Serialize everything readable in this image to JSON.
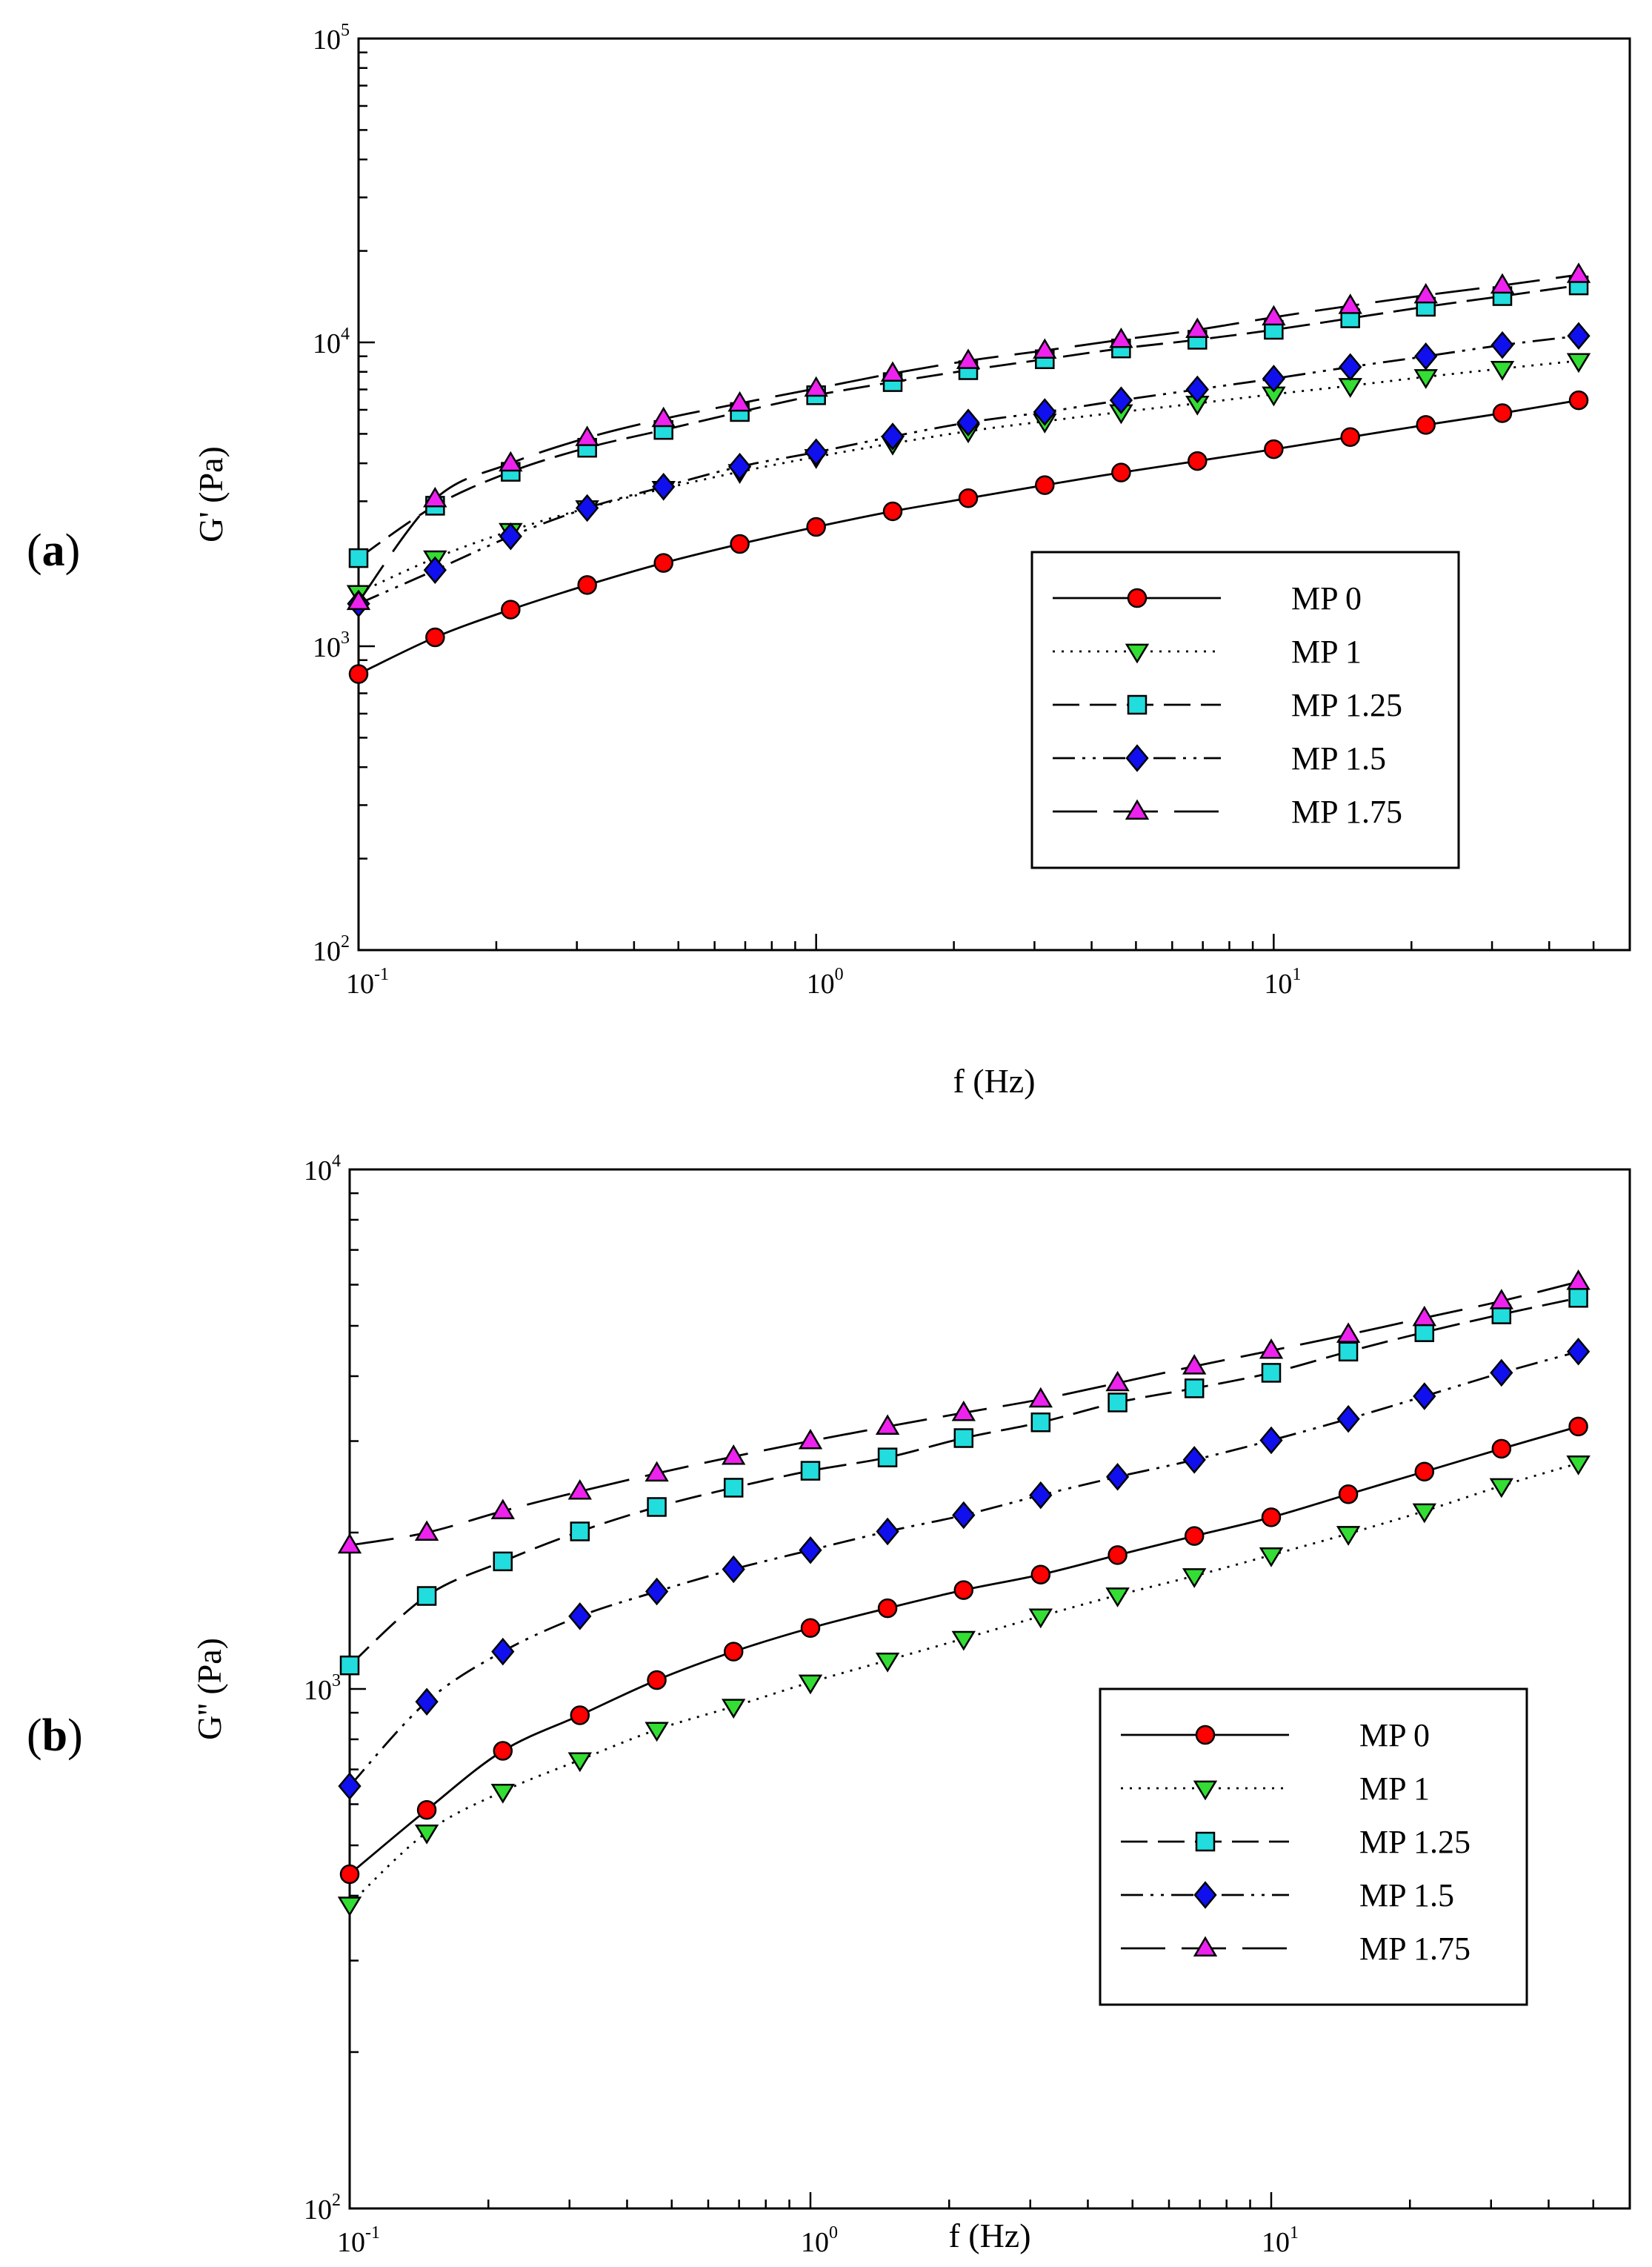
{
  "figure": {
    "panels": [
      {
        "label_open": "(",
        "label_letter": "a",
        "label_close": ")"
      },
      {
        "label_open": "(",
        "label_letter": "b",
        "label_close": ")"
      }
    ]
  },
  "series_styles": [
    {
      "name": "MP 0",
      "color": "#ff0000",
      "marker": "circle",
      "dash": "none"
    },
    {
      "name": "MP 1",
      "color": "#33dd33",
      "marker": "triangle-down",
      "dash": "dotted"
    },
    {
      "name": "MP 1.25",
      "color": "#22dddd",
      "marker": "square",
      "dash": "dashed"
    },
    {
      "name": "MP 1.5",
      "color": "#1010ee",
      "marker": "diamond",
      "dash": "dash-dot-dot"
    },
    {
      "name": "MP 1.75",
      "color": "#ee22ee",
      "marker": "triangle-up",
      "dash": "long-dash"
    }
  ],
  "chart_data": [
    {
      "type": "line",
      "panel": "a",
      "xscale": "log",
      "yscale": "log",
      "xlabel": "f (Hz)",
      "ylabel": "G' (Pa)",
      "xlim": [
        0.1,
        60
      ],
      "ylim": [
        100,
        100000
      ],
      "x_ticks": [
        {
          "base": "10",
          "exp": "-1"
        },
        {
          "base": "10",
          "exp": "0"
        },
        {
          "base": "10",
          "exp": "1"
        }
      ],
      "y_ticks": [
        {
          "base": "10",
          "exp": "2"
        },
        {
          "base": "10",
          "exp": "3"
        },
        {
          "base": "10",
          "exp": "4"
        },
        {
          "base": "10",
          "exp": "5"
        }
      ],
      "x": [
        0.1,
        0.147,
        0.215,
        0.316,
        0.464,
        0.681,
        1.0,
        1.47,
        2.15,
        3.16,
        4.64,
        6.81,
        10.0,
        14.7,
        21.5,
        31.6,
        46.4
      ],
      "series": [
        {
          "name": "MP 0",
          "values": [
            810,
            1070,
            1320,
            1590,
            1880,
            2170,
            2470,
            2780,
            3070,
            3390,
            3730,
            4070,
            4450,
            4880,
            5350,
            5850,
            6450
          ]
        },
        {
          "name": "MP 1",
          "values": [
            1500,
            1950,
            2400,
            2850,
            3300,
            3750,
            4200,
            4650,
            5100,
            5500,
            5900,
            6300,
            6750,
            7200,
            7700,
            8200,
            8700
          ]
        },
        {
          "name": "MP 1.25",
          "values": [
            1950,
            2900,
            3750,
            4500,
            5150,
            5900,
            6700,
            7400,
            8100,
            8800,
            9550,
            10200,
            11000,
            12000,
            13100,
            14200,
            15400
          ]
        },
        {
          "name": "MP 1.5",
          "values": [
            1380,
            1780,
            2300,
            2850,
            3350,
            3900,
            4350,
            4900,
            5450,
            5900,
            6450,
            7000,
            7600,
            8300,
            9000,
            9800,
            10500
          ]
        },
        {
          "name": "MP 1.75",
          "values": [
            1400,
            3050,
            4000,
            4850,
            5600,
            6300,
            7050,
            7900,
            8700,
            9400,
            10200,
            11000,
            12100,
            13200,
            14300,
            15400,
            16700
          ]
        }
      ],
      "legend": {
        "position": "lower-right"
      }
    },
    {
      "type": "line",
      "panel": "b",
      "xscale": "log",
      "yscale": "log",
      "xlabel": "f (Hz)",
      "ylabel": "G'' (Pa)",
      "xlim": [
        0.1,
        60
      ],
      "ylim": [
        100,
        10000
      ],
      "x_ticks": [
        {
          "base": "10",
          "exp": "-1"
        },
        {
          "base": "10",
          "exp": "0"
        },
        {
          "base": "10",
          "exp": "1"
        }
      ],
      "y_ticks": [
        {
          "base": "10",
          "exp": "2"
        },
        {
          "base": "10",
          "exp": "3"
        },
        {
          "base": "10",
          "exp": "4"
        }
      ],
      "x": [
        0.1,
        0.147,
        0.215,
        0.316,
        0.464,
        0.681,
        1.0,
        1.47,
        2.15,
        3.16,
        4.64,
        6.81,
        10.0,
        14.7,
        21.5,
        31.6,
        46.4
      ],
      "series": [
        {
          "name": "MP 0",
          "values": [
            440,
            585,
            760,
            890,
            1040,
            1180,
            1310,
            1430,
            1550,
            1660,
            1810,
            1970,
            2140,
            2370,
            2620,
            2900,
            3200
          ]
        },
        {
          "name": "MP 1",
          "values": [
            385,
            530,
            635,
            730,
            835,
            925,
            1030,
            1135,
            1250,
            1380,
            1515,
            1650,
            1810,
            1990,
            2200,
            2460,
            2720
          ]
        },
        {
          "name": "MP 1.25",
          "values": [
            1110,
            1510,
            1760,
            2010,
            2240,
            2440,
            2630,
            2790,
            3040,
            3260,
            3560,
            3790,
            4060,
            4460,
            4860,
            5260,
            5660
          ]
        },
        {
          "name": "MP 1.5",
          "values": [
            650,
            945,
            1180,
            1380,
            1540,
            1700,
            1850,
            2010,
            2160,
            2360,
            2560,
            2760,
            3010,
            3310,
            3660,
            4060,
            4460
          ]
        },
        {
          "name": "MP 1.75",
          "values": [
            1890,
            2000,
            2200,
            2400,
            2600,
            2800,
            3000,
            3200,
            3400,
            3610,
            3880,
            4180,
            4480,
            4810,
            5180,
            5580,
            6080
          ]
        }
      ],
      "legend": {
        "position": "lower-right"
      }
    }
  ]
}
